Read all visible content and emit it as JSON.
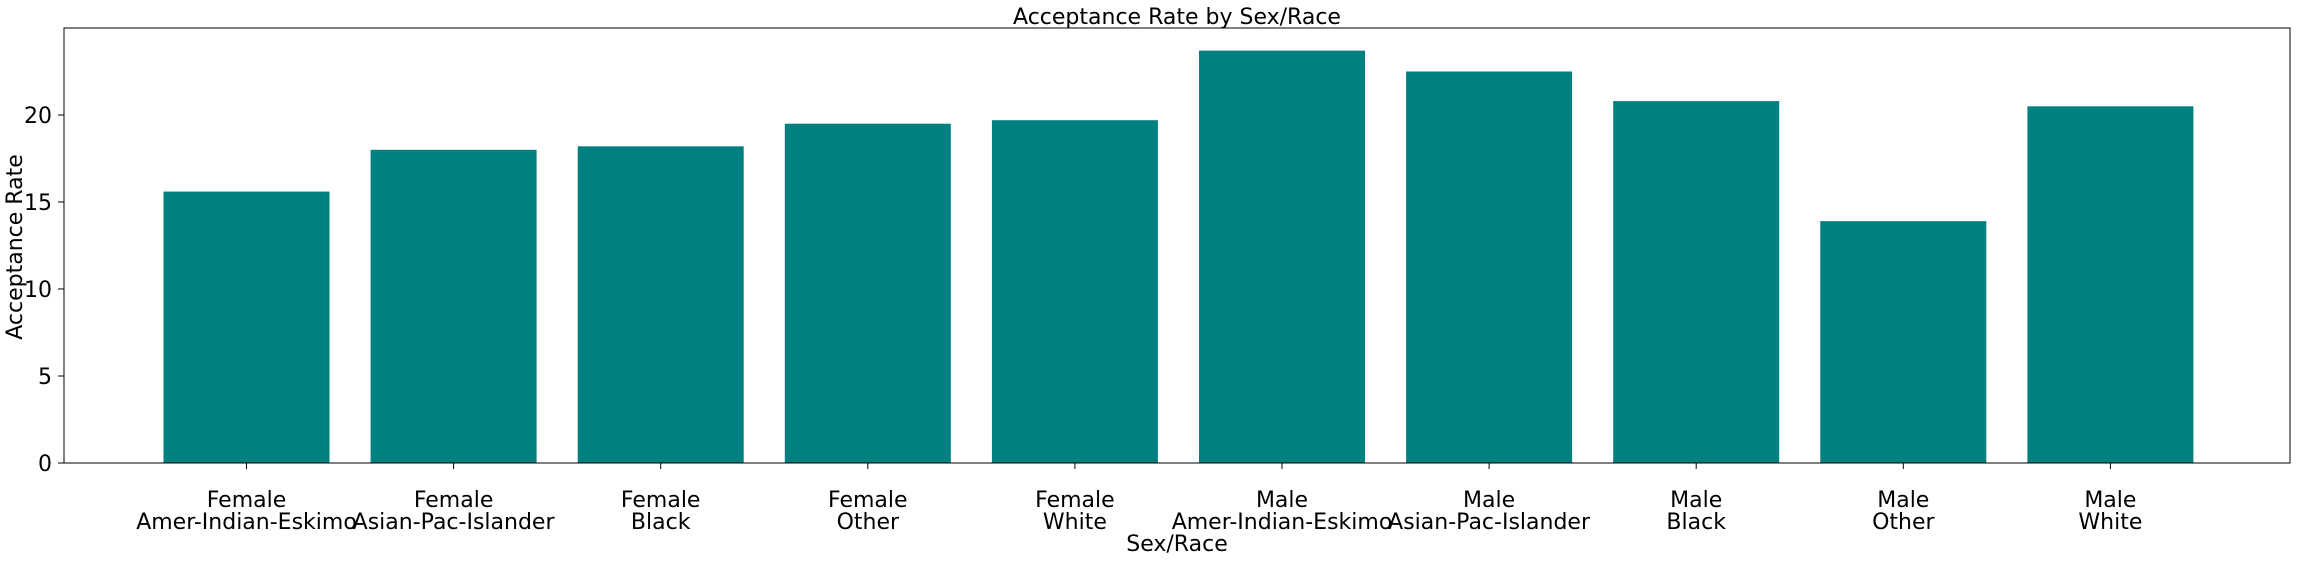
{
  "chart_data": {
    "type": "bar",
    "title": "Acceptance Rate by Sex/Race",
    "xlabel": "Sex/Race",
    "ylabel": "Acceptance Rate",
    "categories": [
      [
        "Female",
        "Amer-Indian-Eskimo"
      ],
      [
        "Female",
        "Asian-Pac-Islander"
      ],
      [
        "Female",
        "Black"
      ],
      [
        "Female",
        "Other"
      ],
      [
        "Female",
        "White"
      ],
      [
        "Male",
        "Amer-Indian-Eskimo"
      ],
      [
        "Male",
        "Asian-Pac-Islander"
      ],
      [
        "Male",
        "Black"
      ],
      [
        "Male",
        "Other"
      ],
      [
        "Male",
        "White"
      ]
    ],
    "values": [
      15.6,
      18.0,
      18.2,
      19.5,
      19.7,
      23.7,
      22.5,
      20.8,
      13.9,
      20.5
    ],
    "ylim": [
      0,
      25
    ],
    "yticks": [
      0,
      5,
      10,
      15,
      20
    ],
    "grid": false,
    "colors": {
      "bar": "#008080",
      "axis": "#000000",
      "text": "#000000"
    }
  }
}
